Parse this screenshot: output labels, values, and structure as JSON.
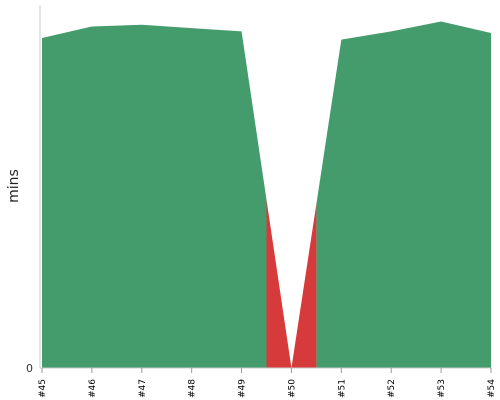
{
  "chart_data": {
    "type": "area",
    "categories": [
      "#45",
      "#46",
      "#47",
      "#48",
      "#49",
      "#50",
      "#51",
      "#52",
      "#53",
      "#54"
    ],
    "series": [
      {
        "values": [
          100,
          103.5,
          104,
          103,
          102,
          0,
          99.5,
          102,
          105,
          101.5
        ],
        "color": "#449c6c"
      }
    ],
    "failed_categories": [
      "#50"
    ],
    "failed_color": "#d63a3a",
    "ylabel": "mins",
    "yticks": [
      "0"
    ],
    "ylim": [
      0,
      110
    ],
    "grid": false,
    "legend": "none"
  }
}
